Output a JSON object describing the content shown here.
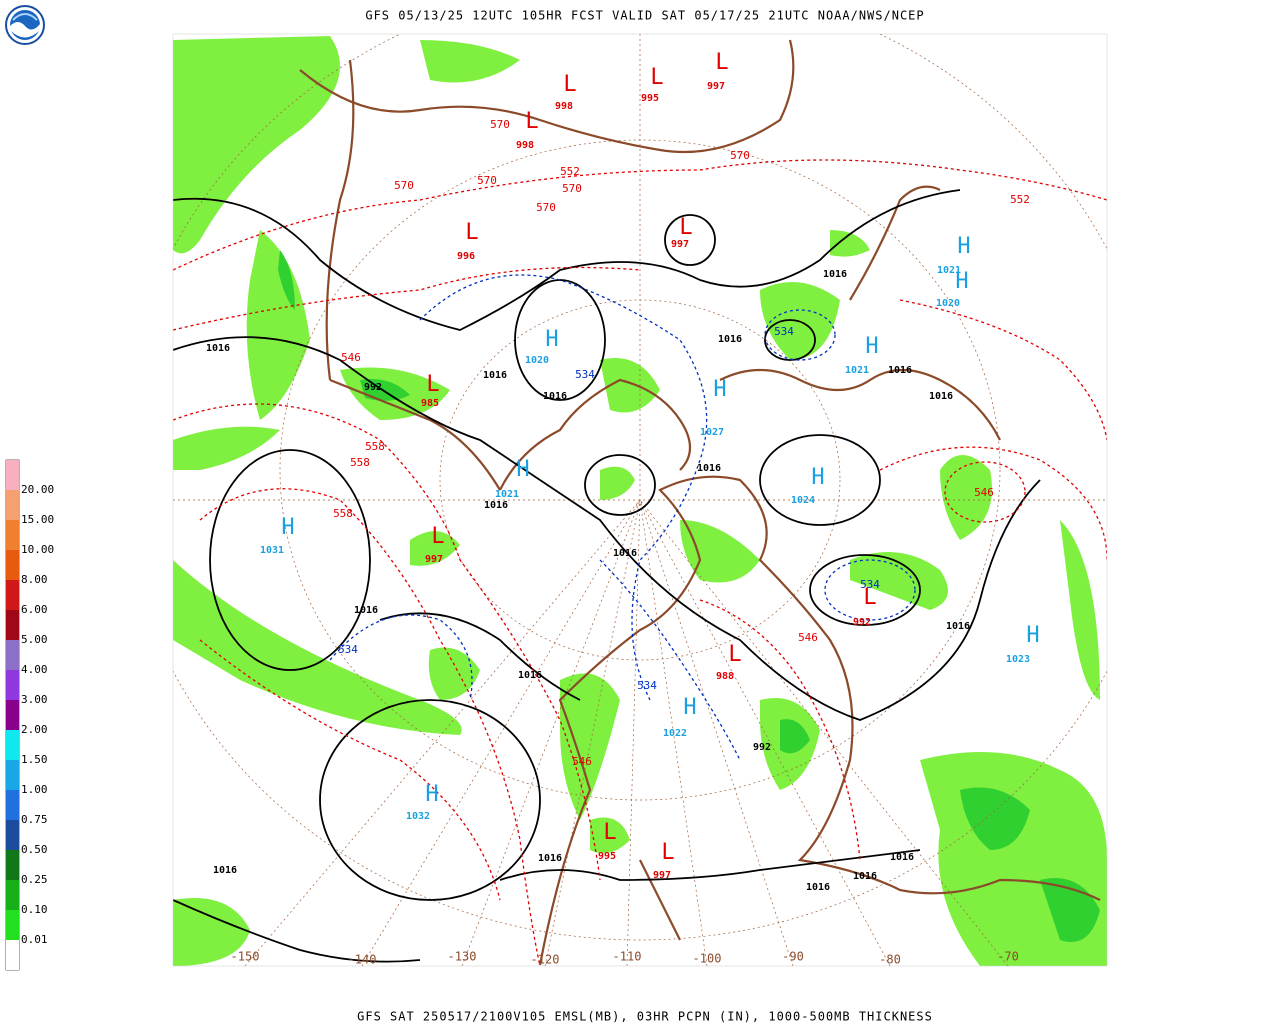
{
  "header": "GFS 05/13/25 12UTC 105HR FCST VALID SAT 05/17/25 21UTC NOAA/NWS/NCEP",
  "footer": "GFS SAT 250517/2100V105 EMSL(MB), 03HR PCPN (IN), 1000-500MB THICKNESS",
  "legend": {
    "labels": [
      "20.00",
      "15.00",
      "10.00",
      "8.00",
      "6.00",
      "5.00",
      "4.00",
      "3.00",
      "2.00",
      "1.50",
      "1.00",
      "0.75",
      "0.50",
      "0.25",
      "0.10",
      "0.01"
    ],
    "colors": [
      "#f8b0c0",
      "#f4a070",
      "#f08030",
      "#e85a10",
      "#d01818",
      "#a00818",
      "#8c70c8",
      "#9038e0",
      "#88008c",
      "#10e8f0",
      "#18a8e8",
      "#2070e0",
      "#1c4c9c",
      "#107818",
      "#18b018",
      "#20e020",
      "#ffffff"
    ]
  },
  "longitudes": [
    -150,
    -140,
    -130,
    -120,
    -110,
    -100,
    -90,
    -80,
    -70
  ],
  "lows": [
    {
      "letter": "L",
      "pressure": 998
    },
    {
      "letter": "L",
      "pressure": 995
    },
    {
      "letter": "L",
      "pressure": 997
    },
    {
      "letter": "L",
      "pressure": 998
    },
    {
      "letter": "L",
      "pressure": 996
    },
    {
      "letter": "L",
      "pressure": 997
    },
    {
      "letter": "L",
      "pressure": 985
    },
    {
      "letter": "L",
      "pressure": 997
    },
    {
      "letter": "L",
      "pressure": 992
    },
    {
      "letter": "L",
      "pressure": 995
    },
    {
      "letter": "L",
      "pressure": 997
    },
    {
      "letter": "L",
      "pressure": 988
    }
  ],
  "highs": [
    {
      "letter": "H",
      "pressure": 1020
    },
    {
      "letter": "H",
      "pressure": 1021
    },
    {
      "letter": "H",
      "pressure": 1031
    },
    {
      "letter": "H",
      "pressure": 1032
    },
    {
      "letter": "H",
      "pressure": 1022
    },
    {
      "letter": "H",
      "pressure": 1023
    },
    {
      "letter": "H",
      "pressure": 1024
    },
    {
      "letter": "H",
      "pressure": 1021
    },
    {
      "letter": "H",
      "pressure": 1020
    },
    {
      "letter": "H",
      "pressure": 1021
    },
    {
      "letter": "H",
      "pressure": 1027
    }
  ],
  "isobar_labels": [
    1016,
    1016,
    1016,
    1016,
    1016,
    1016,
    1016,
    1016,
    1016,
    1016,
    1016,
    1016,
    1016,
    1016,
    1016,
    1016,
    1016,
    1016,
    992,
    992
  ],
  "thickness_labels_red": [
    570,
    570,
    570,
    570,
    552,
    570,
    570,
    546,
    558,
    558,
    558,
    546,
    552,
    546,
    546
  ],
  "thickness_labels_blue": [
    534,
    534,
    534,
    534,
    534
  ]
}
